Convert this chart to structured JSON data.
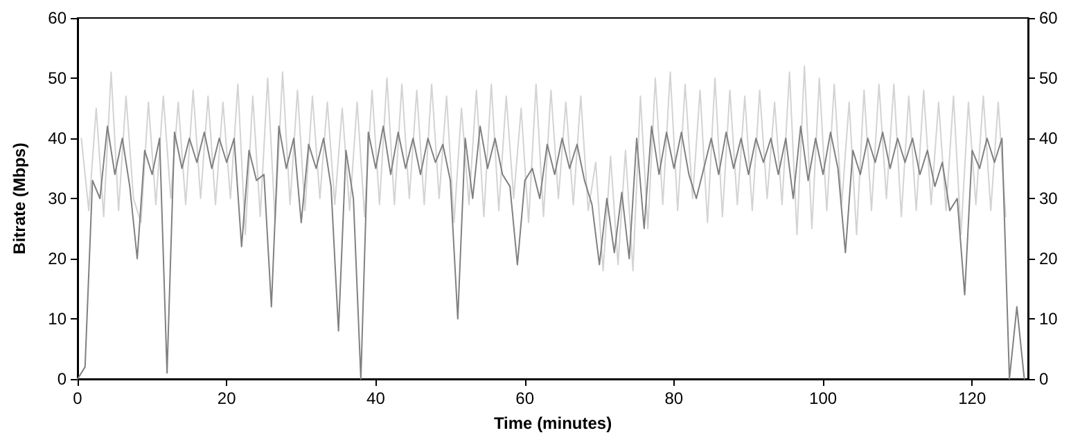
{
  "chart_data": {
    "type": "line",
    "xlabel": "Time (minutes)",
    "ylabel": "Bitrate (Mbps)",
    "xlim": [
      0,
      127.5
    ],
    "xticks": [
      0,
      20,
      40,
      60,
      80,
      100,
      120
    ],
    "ylim": [
      0,
      60
    ],
    "yticks": [
      0,
      10,
      20,
      30,
      40,
      50,
      60
    ],
    "y2lim": [
      0,
      60
    ],
    "y2ticks": [
      0,
      10,
      20,
      30,
      40,
      50,
      60
    ],
    "grid": false,
    "marker": "none",
    "line_style": "solid",
    "series": [
      {
        "color": "#d3d3d3",
        "x": [
          0.5,
          1.5,
          2.5,
          3.5,
          4.5,
          5.5,
          6.5,
          7.5,
          8.5,
          9.5,
          10.5,
          11.5,
          12.5,
          13.5,
          14.5,
          15.5,
          16.5,
          17.5,
          18.5,
          19.5,
          20.5,
          21.5,
          22.5,
          23.5,
          24.5,
          25.5,
          26.5,
          27.5,
          28.5,
          29.5,
          30.5,
          31.5,
          32.5,
          33.5,
          34.5,
          35.5,
          36.5,
          37.5,
          38.5,
          39.5,
          40.5,
          41.5,
          42.5,
          43.5,
          44.5,
          45.5,
          46.5,
          47.5,
          48.5,
          49.5,
          50.5,
          51.5,
          52.5,
          53.5,
          54.5,
          55.5,
          56.5,
          57.5,
          58.5,
          59.5,
          60.5,
          61.5,
          62.5,
          63.5,
          64.5,
          65.5,
          66.5,
          67.5,
          68.5,
          69.5,
          70.5,
          71.5,
          72.5,
          73.5,
          74.5,
          75.5,
          76.5,
          77.5,
          78.5,
          79.5,
          80.5,
          81.5,
          82.5,
          83.5,
          84.5,
          85.5,
          86.5,
          87.5,
          88.5,
          89.5,
          90.5,
          91.5,
          92.5,
          93.5,
          94.5,
          95.5,
          96.5,
          97.5,
          98.5,
          99.5,
          100.5,
          101.5,
          102.5,
          103.5,
          104.5,
          105.5,
          106.5,
          107.5,
          108.5,
          109.5,
          110.5,
          111.5,
          112.5,
          113.5,
          114.5,
          115.5,
          116.5,
          117.5,
          118.5,
          119.5,
          120.5,
          121.5,
          122.5,
          123.5,
          124.5
        ],
        "values": [
          40,
          28,
          45,
          27,
          51,
          28,
          47,
          30,
          26,
          46,
          29,
          47,
          30,
          46,
          29,
          48,
          30,
          47,
          29,
          46,
          30,
          49,
          24,
          47,
          27,
          50,
          26,
          51,
          29,
          48,
          28,
          47,
          30,
          46,
          29,
          45,
          28,
          46,
          27,
          48,
          29,
          50,
          29,
          49,
          30,
          48,
          29,
          49,
          30,
          47,
          26,
          45,
          29,
          48,
          27,
          49,
          28,
          47,
          30,
          45,
          26,
          49,
          27,
          48,
          30,
          46,
          29,
          47,
          28,
          36,
          18,
          37,
          19,
          38,
          18,
          47,
          25,
          50,
          29,
          51,
          28,
          49,
          30,
          48,
          26,
          50,
          27,
          48,
          29,
          47,
          28,
          48,
          30,
          46,
          29,
          51,
          24,
          52,
          25,
          50,
          28,
          49,
          29,
          46,
          24,
          48,
          28,
          49,
          30,
          49,
          27,
          47,
          28,
          48,
          29,
          46,
          28,
          47,
          24,
          46,
          29,
          47,
          28,
          46,
          27
        ]
      },
      {
        "color": "#808080",
        "x": [
          0,
          1,
          2,
          3,
          4,
          5,
          6,
          7,
          8,
          9,
          10,
          11,
          12,
          13,
          14,
          15,
          16,
          17,
          18,
          19,
          20,
          21,
          22,
          23,
          24,
          25,
          26,
          27,
          28,
          29,
          30,
          31,
          32,
          33,
          34,
          35,
          36,
          37,
          38,
          39,
          40,
          41,
          42,
          43,
          44,
          45,
          46,
          47,
          48,
          49,
          50,
          51,
          52,
          53,
          54,
          55,
          56,
          57,
          58,
          59,
          60,
          61,
          62,
          63,
          64,
          65,
          66,
          67,
          68,
          69,
          70,
          71,
          72,
          73,
          74,
          75,
          76,
          77,
          78,
          79,
          80,
          81,
          82,
          83,
          84,
          85,
          86,
          87,
          88,
          89,
          90,
          91,
          92,
          93,
          94,
          95,
          96,
          97,
          98,
          99,
          100,
          101,
          102,
          103,
          104,
          105,
          106,
          107,
          108,
          109,
          110,
          111,
          112,
          113,
          114,
          115,
          116,
          117,
          118,
          119,
          120,
          121,
          122,
          123,
          124,
          125,
          126,
          127
        ],
        "values": [
          0,
          2,
          33,
          30,
          42,
          34,
          40,
          32,
          20,
          38,
          34,
          40,
          1,
          41,
          35,
          40,
          36,
          41,
          35,
          40,
          36,
          40,
          22,
          38,
          33,
          34,
          12,
          42,
          35,
          40,
          26,
          39,
          35,
          40,
          32,
          8,
          38,
          30,
          0,
          41,
          35,
          42,
          34,
          41,
          35,
          40,
          34,
          40,
          36,
          39,
          33,
          10,
          40,
          30,
          42,
          35,
          40,
          34,
          32,
          19,
          33,
          35,
          30,
          39,
          34,
          40,
          35,
          39,
          33,
          29,
          19,
          30,
          21,
          31,
          20,
          40,
          25,
          42,
          34,
          41,
          35,
          41,
          34,
          30,
          35,
          40,
          34,
          41,
          35,
          40,
          34,
          40,
          36,
          40,
          34,
          40,
          30,
          42,
          33,
          40,
          34,
          41,
          35,
          21,
          38,
          34,
          40,
          36,
          41,
          35,
          40,
          36,
          40,
          34,
          38,
          32,
          36,
          28,
          30,
          14,
          38,
          35,
          40,
          36,
          40,
          0,
          12,
          0
        ]
      }
    ]
  }
}
